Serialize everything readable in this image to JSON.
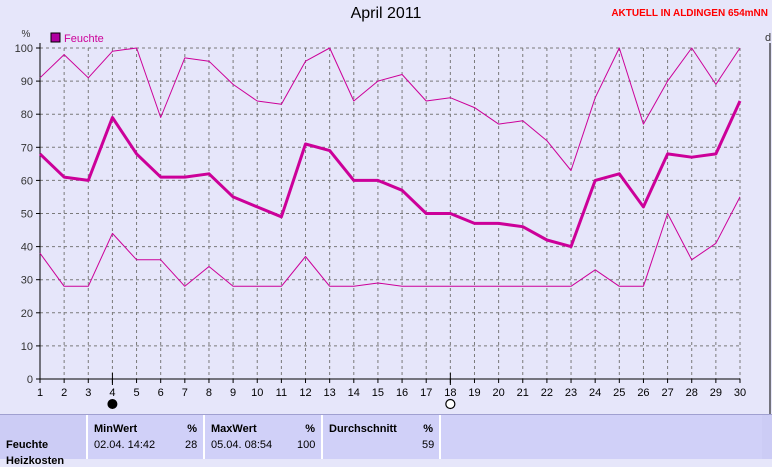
{
  "page": {
    "title": "April 2011",
    "station": "AKTUELL IN ALDINGEN 654mNN"
  },
  "chart_data": {
    "type": "line",
    "title": "April 2011",
    "ylabel": "%",
    "y_right_label": "d",
    "ylim": [
      0,
      100
    ],
    "y_ticks": [
      0,
      10,
      20,
      30,
      40,
      50,
      60,
      70,
      80,
      90,
      100
    ],
    "x": [
      1,
      2,
      3,
      4,
      5,
      6,
      7,
      8,
      9,
      10,
      11,
      12,
      13,
      14,
      15,
      16,
      17,
      18,
      19,
      20,
      21,
      22,
      23,
      24,
      25,
      26,
      27,
      28,
      29,
      30
    ],
    "grid": true,
    "legend": {
      "position": "top-left",
      "entries": [
        "Feuchte"
      ]
    },
    "series": [
      {
        "name": "Feuchte",
        "role": "max",
        "color": "#cc0099",
        "width": 1,
        "values": [
          91,
          98,
          91,
          99,
          100,
          79,
          97,
          96,
          89,
          84,
          83,
          96,
          100,
          84,
          90,
          92,
          84,
          85,
          82,
          77,
          78,
          72,
          63,
          85,
          100,
          77,
          90,
          100,
          89,
          100
        ]
      },
      {
        "name": "Feuchte",
        "role": "mean",
        "color": "#cc0099",
        "width": 3,
        "values": [
          68,
          61,
          60,
          79,
          68,
          61,
          61,
          62,
          55,
          52,
          49,
          71,
          69,
          60,
          60,
          57,
          50,
          50,
          47,
          47,
          46,
          42,
          40,
          60,
          62,
          52,
          68,
          67,
          68,
          84
        ]
      },
      {
        "name": "Feuchte",
        "role": "min",
        "color": "#cc0099",
        "width": 1,
        "values": [
          38,
          28,
          28,
          44,
          36,
          36,
          28,
          34,
          28,
          28,
          28,
          37,
          28,
          28,
          29,
          28,
          28,
          28,
          28,
          28,
          28,
          28,
          28,
          33,
          28,
          28,
          50,
          36,
          41,
          55
        ]
      }
    ],
    "moon_markers": [
      {
        "day": 4,
        "phase": "new-moon"
      },
      {
        "day": 18,
        "phase": "full-moon"
      }
    ]
  },
  "stats": {
    "min_header": "MinWert",
    "max_header": "MaxWert",
    "avg_header": "Durchschnitt",
    "unit": "%",
    "rows": [
      {
        "label": "Feuchte",
        "min_date": "02.04.  14:42",
        "min_value": "28",
        "max_date": "05.04.  08:54",
        "max_value": "100",
        "avg_value": "59"
      },
      {
        "label": "Heizkosten"
      }
    ]
  }
}
